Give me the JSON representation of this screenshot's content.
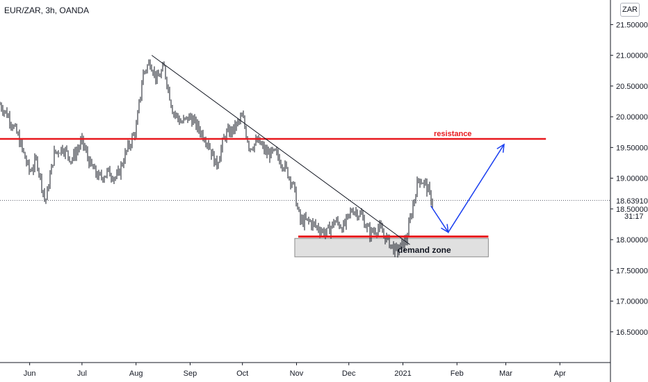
{
  "header": {
    "title": "EUR/ZAR, 3h, OANDA",
    "currency_button": "ZAR"
  },
  "last_price": "18.63910",
  "countdown": "31:17",
  "annotations": {
    "resistance": "resistance",
    "demand_zone": "demand zone"
  },
  "colors": {
    "candles": "#131722",
    "resistance": "#e8191e",
    "demand_line": "#e8191e",
    "zone_fill": "#e0e0e0",
    "projection": "#1a3ff0",
    "trendline": "#131722",
    "axis": "#131722"
  },
  "chart_data": {
    "type": "line",
    "x_axis": {
      "type": "date",
      "ticks": [
        "Jun",
        "Jul",
        "Aug",
        "Sep",
        "Oct",
        "Nov",
        "Dec",
        "2021",
        "Feb",
        "Mar",
        "Apr"
      ],
      "tick_dates": [
        "2020-06-01",
        "2020-07-01",
        "2020-08-01",
        "2020-09-01",
        "2020-10-01",
        "2020-11-01",
        "2020-12-01",
        "2021-01-01",
        "2021-02-01",
        "2021-03-01",
        "2021-04-01"
      ],
      "range": [
        "2020-05-15",
        "2021-04-30"
      ]
    },
    "y_axis": {
      "ticks": [
        "16.50000",
        "17.00000",
        "17.50000",
        "18.00000",
        "18.50000",
        "19.00000",
        "19.50000",
        "20.00000",
        "20.50000",
        "21.00000",
        "21.50000"
      ],
      "tick_values": [
        16.5,
        17.0,
        17.5,
        18.0,
        18.5,
        19.0,
        19.5,
        20.0,
        20.5,
        21.0,
        21.5
      ],
      "range": [
        16.0,
        21.9
      ]
    },
    "series": [
      {
        "x": [
          "2020-05-15",
          "2020-05-20",
          "2020-05-25",
          "2020-06-01",
          "2020-06-05",
          "2020-06-10",
          "2020-06-15",
          "2020-06-20",
          "2020-06-25",
          "2020-07-01",
          "2020-07-06",
          "2020-07-11",
          "2020-07-16",
          "2020-07-21",
          "2020-07-26",
          "2020-08-01",
          "2020-08-05",
          "2020-08-09",
          "2020-08-13",
          "2020-08-17",
          "2020-08-22",
          "2020-08-27",
          "2020-09-01",
          "2020-09-06",
          "2020-09-11",
          "2020-09-16",
          "2020-09-21",
          "2020-09-26",
          "2020-10-01",
          "2020-10-05",
          "2020-10-10",
          "2020-10-15",
          "2020-10-20",
          "2020-10-25",
          "2020-10-30",
          "2020-11-03",
          "2020-11-08",
          "2020-11-13",
          "2020-11-18",
          "2020-11-23",
          "2020-11-28",
          "2020-12-03",
          "2020-12-08",
          "2020-12-13",
          "2020-12-18",
          "2020-12-23",
          "2020-12-28",
          "2021-01-03",
          "2021-01-07",
          "2021-01-10",
          "2021-01-14",
          "2021-01-18"
        ],
        "y": [
          20.2,
          20.0,
          19.7,
          19.1,
          19.3,
          18.6,
          19.4,
          19.5,
          19.3,
          19.6,
          19.2,
          19.0,
          19.1,
          19.0,
          19.4,
          19.8,
          20.7,
          20.9,
          20.6,
          20.8,
          20.1,
          19.9,
          20.0,
          19.8,
          19.6,
          19.2,
          19.7,
          19.8,
          20.0,
          19.5,
          19.6,
          19.4,
          19.4,
          19.2,
          18.9,
          18.3,
          18.3,
          18.2,
          18.1,
          18.3,
          18.2,
          18.5,
          18.4,
          18.1,
          18.2,
          18.0,
          17.8,
          18.0,
          18.6,
          19.0,
          18.9,
          18.6
        ]
      }
    ],
    "levels": {
      "resistance": 19.64,
      "demand_line": 18.05,
      "demand_zone": [
        17.72,
        18.02
      ],
      "last_price": 18.6391
    },
    "trendline": {
      "from": [
        "2020-08-10",
        21.0
      ],
      "to": [
        "2021-01-05",
        17.92
      ]
    },
    "projection": {
      "points": [
        [
          "2021-01-17",
          18.55
        ],
        [
          "2021-01-27",
          18.12
        ],
        [
          "2021-02-28",
          19.55
        ]
      ]
    },
    "grid": false
  }
}
